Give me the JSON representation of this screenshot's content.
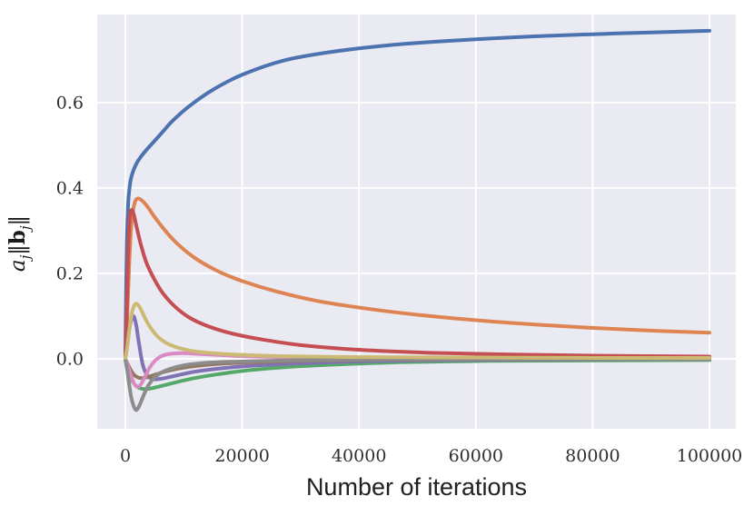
{
  "figure": {
    "xlabel": "Number of iterations",
    "ylabel": {
      "a": "a",
      "a_sub": "j",
      "norm1": "‖",
      "b": "b",
      "b_sub": "j",
      "norm2": "‖"
    }
  },
  "chart_data": {
    "type": "line",
    "title": "",
    "xlabel": "Number of iterations",
    "ylabel": "a_j‖b_j‖",
    "style": "seaborn-darkgrid",
    "axes_background": "#EAEAF2",
    "grid_color": "#FFFFFF",
    "grid": true,
    "legend": null,
    "line_width": 4,
    "xlim": [
      -4821,
      104510
    ],
    "ylim": [
      -0.164,
      0.806
    ],
    "xticks": [
      0,
      20000,
      40000,
      60000,
      80000,
      100000
    ],
    "xtick_labels": [
      "0",
      "20000",
      "40000",
      "60000",
      "80000",
      "100000"
    ],
    "yticks": [
      0.0,
      0.2,
      0.4,
      0.6
    ],
    "ytick_labels": [
      "0.0",
      "0.2",
      "0.4",
      "0.6"
    ],
    "series": [
      {
        "name": "neuron-1-blue",
        "color": "#4C72B0",
        "x": [
          0,
          100,
          250,
          450,
          600,
          900,
          1300,
          1900,
          2600,
          3600,
          5000,
          6500,
          8000,
          11000,
          15000,
          20000,
          27000,
          35000,
          45000,
          55000,
          70000,
          85000,
          100000
        ],
        "y": [
          0.005,
          0.12,
          0.27,
          0.355,
          0.385,
          0.418,
          0.438,
          0.457,
          0.472,
          0.489,
          0.51,
          0.533,
          0.556,
          0.592,
          0.63,
          0.665,
          0.698,
          0.718,
          0.734,
          0.744,
          0.755,
          0.762,
          0.768
        ]
      },
      {
        "name": "neuron-2-orange",
        "color": "#DD8452",
        "x": [
          0,
          300,
          700,
          1100,
          1600,
          2100,
          2800,
          3800,
          5000,
          7000,
          9000,
          12000,
          16000,
          20000,
          26000,
          33000,
          41000,
          50000,
          62000,
          75000,
          88000,
          100000
        ],
        "y": [
          0.003,
          0.09,
          0.235,
          0.325,
          0.365,
          0.375,
          0.371,
          0.356,
          0.332,
          0.297,
          0.268,
          0.235,
          0.204,
          0.182,
          0.157,
          0.135,
          0.118,
          0.103,
          0.088,
          0.076,
          0.067,
          0.061
        ]
      },
      {
        "name": "neuron-3-green",
        "color": "#55A868",
        "x": [
          0,
          300,
          700,
          1200,
          1800,
          2500,
          3200,
          4200,
          5500,
          7000,
          9000,
          12000,
          16000,
          21000,
          28000,
          37000,
          48000,
          62000,
          80000,
          100000
        ],
        "y": [
          -0.002,
          -0.015,
          -0.035,
          -0.052,
          -0.063,
          -0.069,
          -0.071,
          -0.07,
          -0.066,
          -0.061,
          -0.054,
          -0.045,
          -0.036,
          -0.027,
          -0.019,
          -0.013,
          -0.008,
          -0.005,
          -0.004,
          -0.003
        ]
      },
      {
        "name": "neuron-4-red",
        "color": "#C44E52",
        "x": [
          0,
          250,
          500,
          750,
          1000,
          1400,
          1900,
          2600,
          3600,
          5000,
          6500,
          8500,
          11000,
          14000,
          18000,
          23000,
          30000,
          40000,
          52000,
          66000,
          82000,
          100000
        ],
        "y": [
          0.003,
          0.12,
          0.26,
          0.33,
          0.348,
          0.34,
          0.31,
          0.27,
          0.225,
          0.185,
          0.152,
          0.122,
          0.096,
          0.077,
          0.06,
          0.046,
          0.032,
          0.021,
          0.014,
          0.01,
          0.007,
          0.005
        ]
      },
      {
        "name": "neuron-5-purple",
        "color": "#8172B3",
        "x": [
          0,
          300,
          600,
          900,
          1200,
          1500,
          1900,
          2400,
          3000,
          3800,
          4800,
          6000,
          7500,
          9500,
          12000,
          16000,
          21000,
          28000,
          38000,
          50000,
          70000,
          100000
        ],
        "y": [
          0.002,
          0.03,
          0.062,
          0.085,
          0.096,
          0.098,
          0.075,
          0.03,
          -0.015,
          -0.04,
          -0.048,
          -0.047,
          -0.043,
          -0.037,
          -0.03,
          -0.023,
          -0.017,
          -0.012,
          -0.007,
          -0.004,
          -0.002,
          -0.001
        ]
      },
      {
        "name": "neuron-6-brown",
        "color": "#937860",
        "x": [
          0,
          400,
          900,
          1500,
          2200,
          3000,
          4000,
          5200,
          6800,
          9000,
          12000,
          16000,
          22000,
          30000,
          45000,
          70000,
          100000
        ],
        "y": [
          -0.001,
          -0.012,
          -0.026,
          -0.038,
          -0.044,
          -0.045,
          -0.042,
          -0.037,
          -0.03,
          -0.023,
          -0.017,
          -0.012,
          -0.008,
          -0.005,
          -0.002,
          -0.001,
          0.0
        ]
      },
      {
        "name": "neuron-7-pink",
        "color": "#DA8BC3",
        "x": [
          0,
          300,
          700,
          1100,
          1600,
          2100,
          2700,
          3400,
          4200,
          5200,
          6500,
          8000,
          10000,
          13000,
          17000,
          22000,
          30000,
          42000,
          60000,
          100000
        ],
        "y": [
          0.0,
          -0.01,
          -0.028,
          -0.045,
          -0.06,
          -0.066,
          -0.059,
          -0.041,
          -0.02,
          -0.003,
          0.008,
          0.012,
          0.013,
          0.011,
          0.008,
          0.005,
          0.003,
          0.001,
          0.0,
          0.0
        ]
      },
      {
        "name": "neuron-8-gray",
        "color": "#8C8C8C",
        "x": [
          0,
          300,
          600,
          1000,
          1400,
          1800,
          2200,
          2700,
          3300,
          4000,
          5000,
          6200,
          7800,
          9800,
          12500,
          16000,
          21000,
          28000,
          40000,
          60000,
          100000
        ],
        "y": [
          -0.002,
          -0.025,
          -0.055,
          -0.09,
          -0.11,
          -0.12,
          -0.115,
          -0.1,
          -0.08,
          -0.061,
          -0.044,
          -0.032,
          -0.023,
          -0.016,
          -0.011,
          -0.008,
          -0.006,
          -0.004,
          -0.002,
          -0.001,
          -0.001
        ]
      },
      {
        "name": "neuron-9-khaki",
        "color": "#CCB974",
        "x": [
          0,
          300,
          600,
          1000,
          1400,
          1800,
          2300,
          2900,
          3600,
          4500,
          5600,
          7000,
          9000,
          11500,
          15000,
          20000,
          27000,
          38000,
          55000,
          80000,
          100000
        ],
        "y": [
          0.002,
          0.025,
          0.06,
          0.098,
          0.121,
          0.129,
          0.124,
          0.109,
          0.089,
          0.069,
          0.051,
          0.037,
          0.026,
          0.018,
          0.013,
          0.009,
          0.006,
          0.004,
          0.003,
          0.002,
          0.002
        ]
      }
    ]
  }
}
